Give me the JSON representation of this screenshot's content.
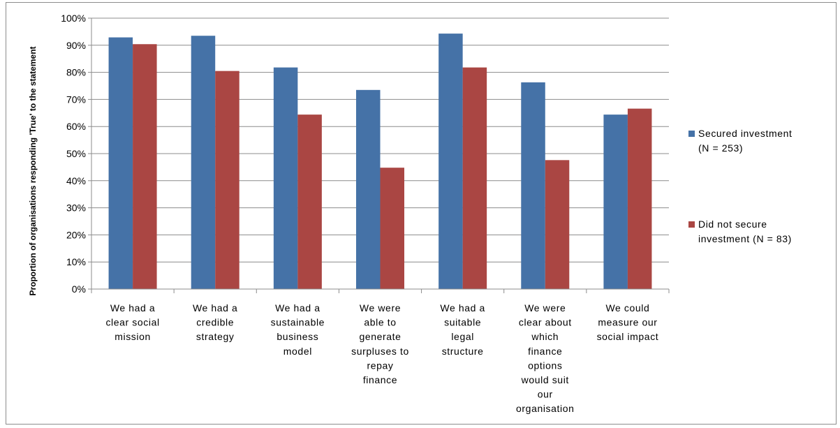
{
  "chart_data": {
    "type": "bar",
    "ylabel": "Proportion of organisations responding 'True' to the statement",
    "xlabel": "",
    "ylim": [
      0,
      100
    ],
    "y_ticks": [
      "0%",
      "10%",
      "20%",
      "30%",
      "40%",
      "50%",
      "60%",
      "70%",
      "80%",
      "90%",
      "100%"
    ],
    "grid": true,
    "legend_position": "right",
    "categories": [
      [
        "We had a",
        "clear social",
        "mission"
      ],
      [
        "We had a",
        "credible",
        "strategy"
      ],
      [
        "We had a",
        "sustainable",
        "business",
        "model"
      ],
      [
        "We were",
        "able to",
        "generate",
        "surpluses to",
        "repay",
        "finance"
      ],
      [
        "We had a",
        "suitable",
        "legal",
        "structure"
      ],
      [
        "We were",
        "clear about",
        "which",
        "finance",
        "options",
        "would suit",
        "our",
        "organisation"
      ],
      [
        "We could",
        "measure our",
        "social impact"
      ]
    ],
    "series": [
      {
        "name": [
          "Secured investment",
          "(N = 253)"
        ],
        "color": "#4572A7",
        "values": [
          92.9,
          93.5,
          81.8,
          73.5,
          94.3,
          76.3,
          64.4
        ]
      },
      {
        "name": [
          "Did not secure",
          "investment (N = 83)"
        ],
        "color": "#AA4643",
        "values": [
          90.4,
          80.5,
          64.4,
          44.8,
          81.8,
          47.6,
          66.6
        ]
      }
    ]
  }
}
